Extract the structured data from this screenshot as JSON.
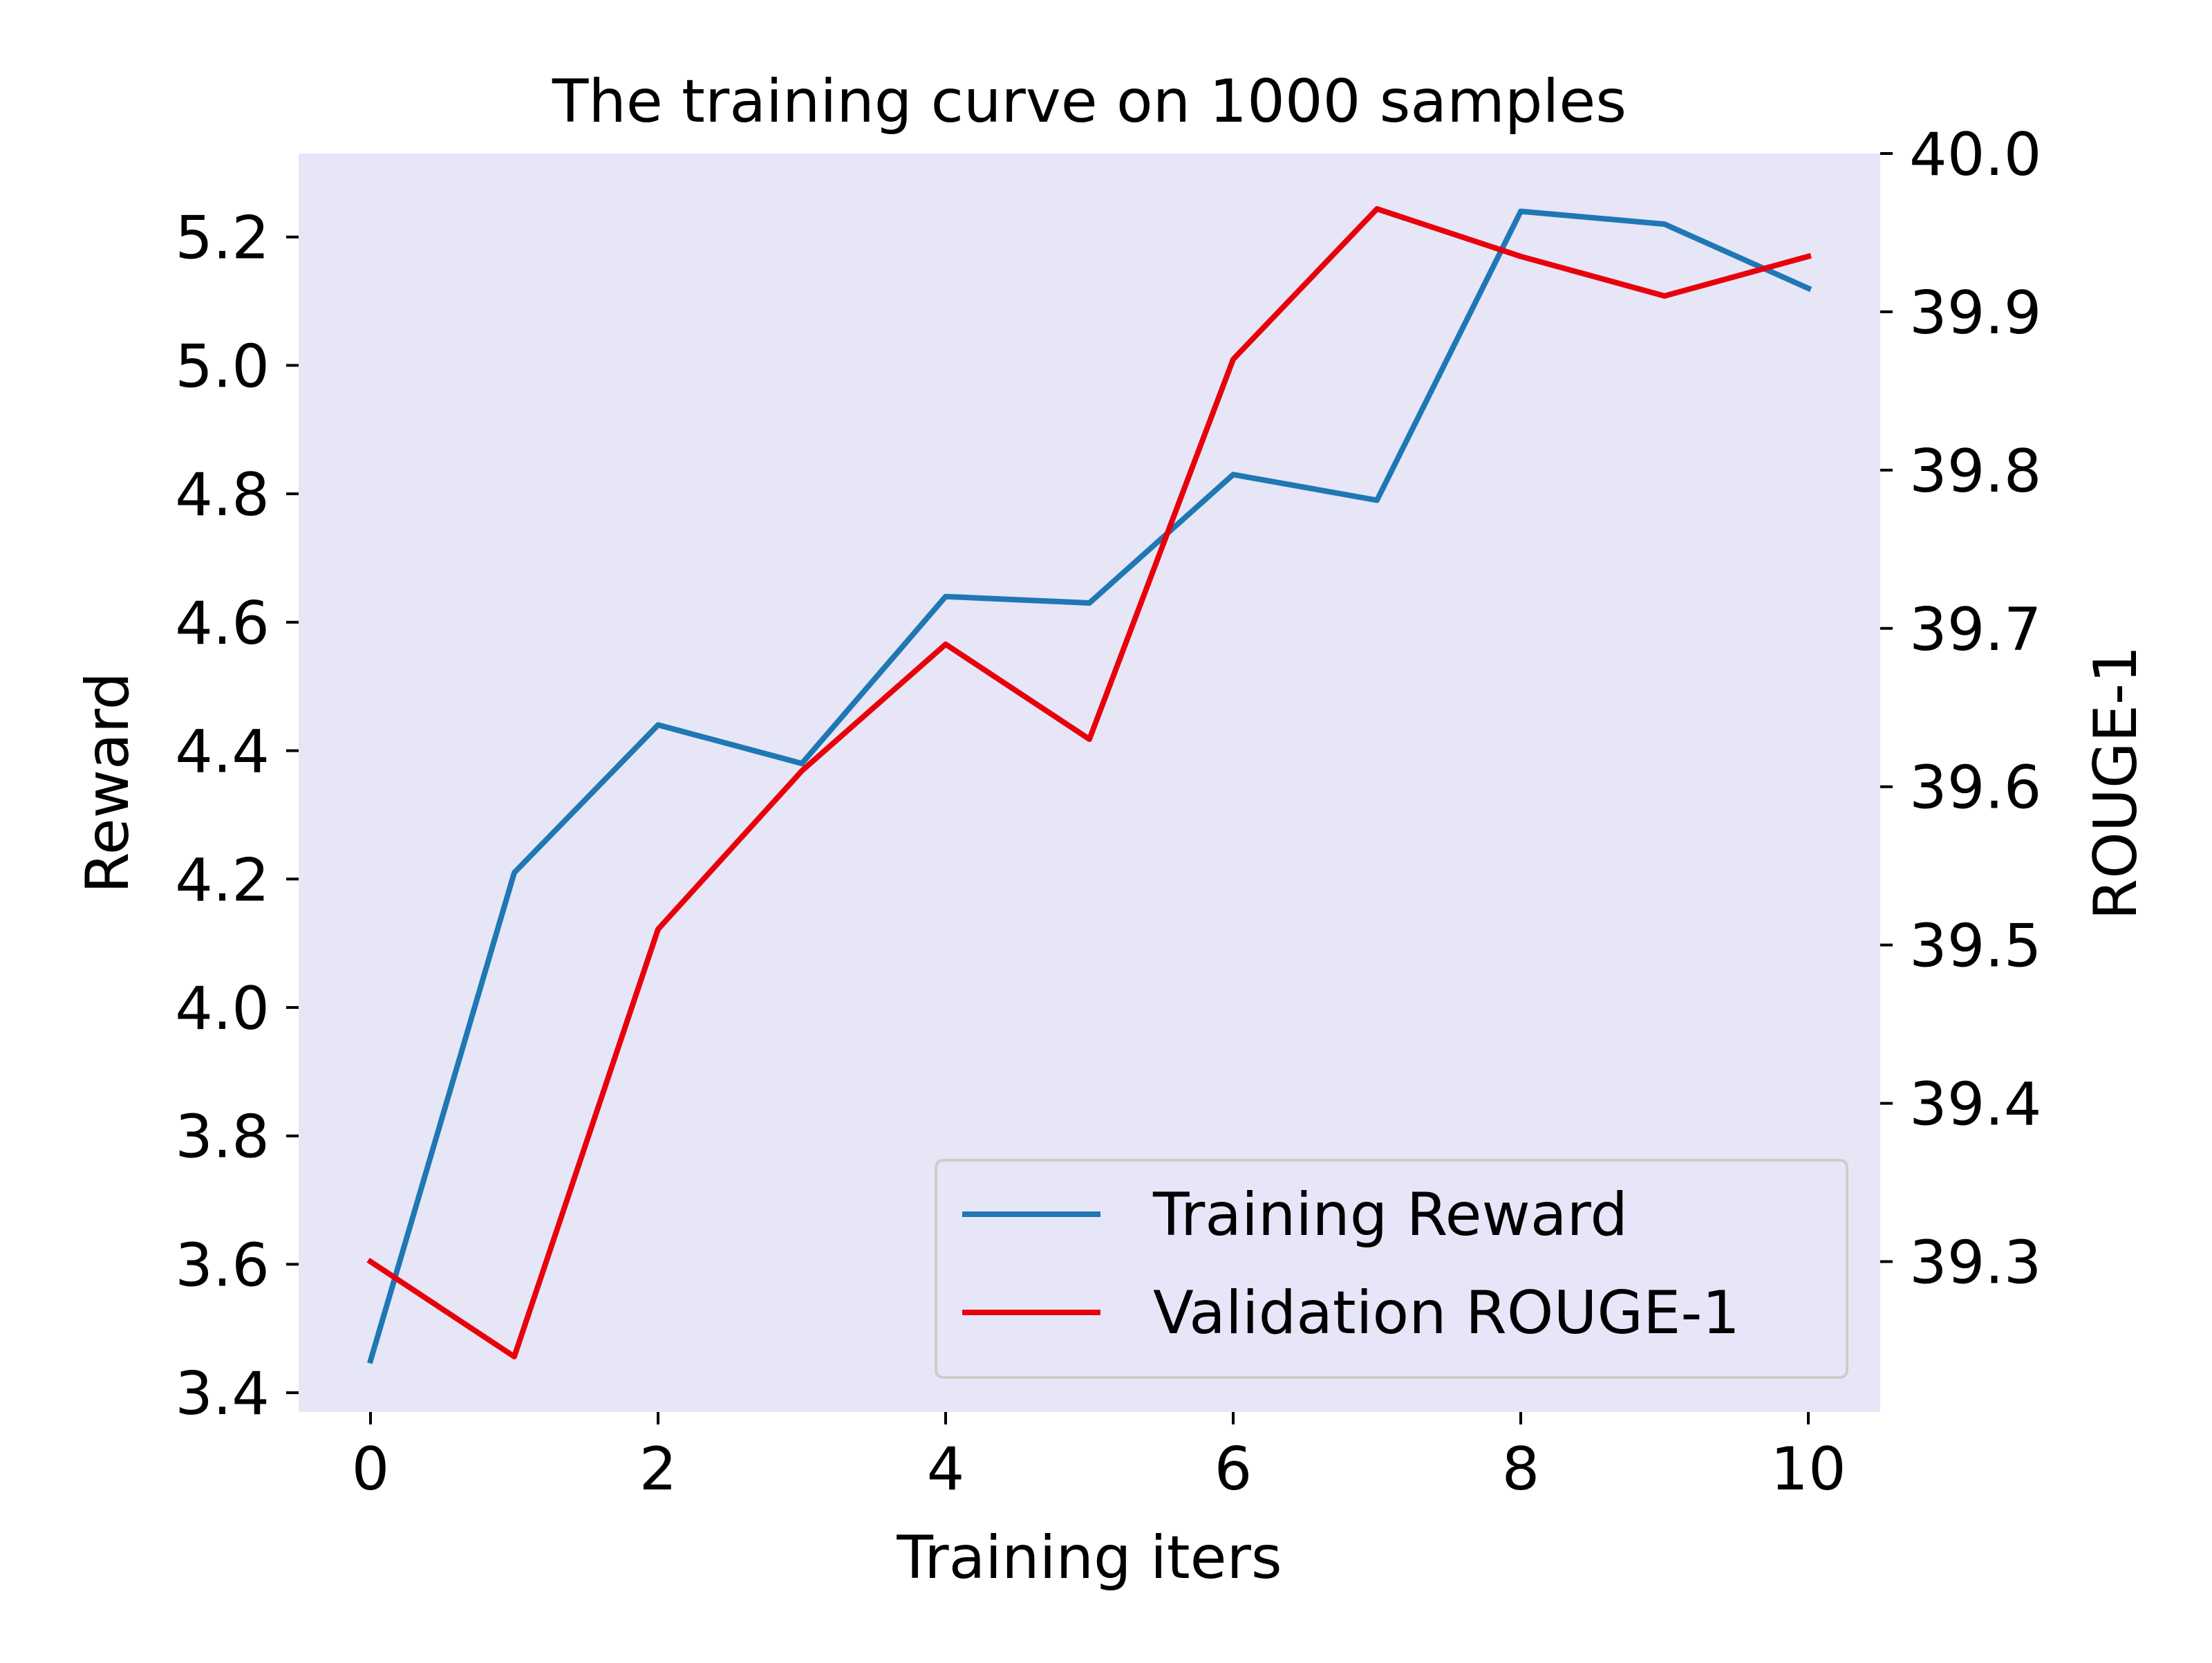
{
  "chart_data": {
    "type": "line",
    "title": "The training curve on 1000 samples",
    "xlabel": "Training iters",
    "ylabel_left": "Reward",
    "ylabel_right": "ROUGE-1",
    "x": [
      0,
      1,
      2,
      3,
      4,
      5,
      6,
      7,
      8,
      9,
      10
    ],
    "xlim": [
      -0.5,
      10.5
    ],
    "ylim_left": [
      3.37,
      5.33
    ],
    "ylim_right": [
      39.205,
      40.0
    ],
    "xticks": [
      0,
      2,
      4,
      6,
      8,
      10
    ],
    "xtick_labels": [
      "0",
      "2",
      "4",
      "6",
      "8",
      "10"
    ],
    "yticks_left": [
      3.4,
      3.6,
      3.8,
      4.0,
      4.2,
      4.4,
      4.6,
      4.8,
      5.0,
      5.2
    ],
    "ytick_labels_left": [
      "3.4",
      "3.6",
      "3.8",
      "4.0",
      "4.2",
      "4.4",
      "4.6",
      "4.8",
      "5.0",
      "5.2"
    ],
    "yticks_right": [
      39.3,
      39.4,
      39.5,
      39.6,
      39.7,
      39.8,
      39.9,
      40.0
    ],
    "ytick_labels_right": [
      "39.3",
      "39.4",
      "39.5",
      "39.6",
      "39.7",
      "39.8",
      "39.9",
      "40.0"
    ],
    "series": [
      {
        "name": "Training Reward",
        "axis": "left",
        "color": "#1f77b4",
        "values": [
          3.45,
          4.21,
          4.44,
          4.38,
          4.64,
          4.63,
          4.83,
          4.79,
          5.24,
          5.22,
          5.12
        ]
      },
      {
        "name": "Validation ROUGE-1",
        "axis": "right",
        "color": "#e8000b",
        "values": [
          39.3,
          39.24,
          39.51,
          39.61,
          39.69,
          39.63,
          39.87,
          39.965,
          39.935,
          39.91,
          39.935
        ]
      }
    ],
    "grid": false,
    "legend_position": "lower right",
    "plot_background": "#e6e6f7"
  }
}
